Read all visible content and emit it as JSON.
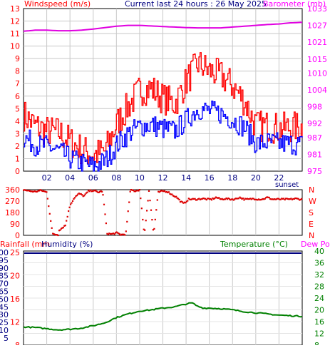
{
  "header": {
    "left_label": "Windspeed (m/s)",
    "center_label": "Current last 24 hours : 26 May 2025",
    "right_label": "Barometer (mb)"
  },
  "colors": {
    "wind_gust": "#ff0000",
    "wind_avg": "#0000ff",
    "barometer": "#e000e0",
    "direction": "#dd0000",
    "temperature": "#008000",
    "dew_point": "#ffcc00",
    "humidity_rain": "#000080",
    "grid": "#c8c8c8",
    "axis_text_left": "#ff0000",
    "axis_text_right": "#ff00ff",
    "axis_text_x": "#000080"
  },
  "chart_data": [
    {
      "type": "line",
      "title": "Current last 24 hours : 26 May 2025",
      "ylabel": "Windspeed (m/s)",
      "y2label": "Barometer (mb)",
      "ylim": [
        0,
        13
      ],
      "y2lim": [
        975,
        1033
      ],
      "xlim": [
        0,
        24
      ],
      "x_ticks": [
        "02",
        "04",
        "06",
        "08",
        "10",
        "12",
        "14",
        "16",
        "18",
        "20",
        "22"
      ],
      "y_ticks": [
        0,
        1,
        2,
        3,
        4,
        5,
        6,
        7,
        8,
        9,
        10,
        11,
        12,
        13
      ],
      "y2_ticks": [
        975,
        981,
        987,
        992,
        998,
        1004,
        1010,
        1015,
        1021,
        1027,
        1033
      ],
      "annotation": "sunset",
      "series": [
        {
          "role": "gust",
          "x": [
            0,
            1,
            2,
            3,
            4,
            5,
            6,
            7,
            8,
            9,
            10,
            11,
            12,
            13,
            14,
            15,
            16,
            17,
            18,
            19,
            20,
            21,
            22,
            23,
            24
          ],
          "values": [
            4.5,
            3.6,
            3.2,
            3.1,
            2.4,
            1.7,
            1.3,
            1.6,
            3.8,
            5.2,
            6.5,
            6.6,
            5.8,
            5.4,
            7.2,
            8.6,
            8.0,
            7.6,
            6.8,
            5.6,
            3.6,
            3.6,
            3.4,
            3.5,
            3.5
          ]
        },
        {
          "role": "average",
          "x": [
            0,
            1,
            2,
            3,
            4,
            5,
            6,
            7,
            8,
            9,
            10,
            11,
            12,
            13,
            14,
            15,
            16,
            17,
            18,
            19,
            20,
            21,
            22,
            23,
            24
          ],
          "values": [
            2.7,
            2.1,
            2.0,
            1.6,
            1.0,
            0.6,
            0.4,
            0.8,
            2.1,
            3.0,
            3.6,
            3.7,
            3.4,
            3.2,
            4.1,
            5.0,
            4.8,
            4.6,
            4.1,
            3.5,
            2.2,
            2.3,
            2.2,
            2.2,
            2.1
          ]
        },
        {
          "name": "Barometer (mb)",
          "axis": "right",
          "x": [
            0,
            1,
            2,
            3,
            4,
            5,
            6,
            7,
            8,
            9,
            10,
            11,
            12,
            13,
            14,
            15,
            16,
            17,
            18,
            19,
            20,
            21,
            22,
            23,
            24
          ],
          "values": [
            1024.9,
            1025.3,
            1025.3,
            1025.1,
            1025.1,
            1025.3,
            1025.7,
            1026.2,
            1026.7,
            1027.0,
            1027.0,
            1026.8,
            1026.6,
            1026.4,
            1026.2,
            1026.1,
            1026.1,
            1026.1,
            1026.4,
            1026.7,
            1027.0,
            1027.3,
            1027.5,
            1027.9,
            1028.1
          ]
        }
      ]
    },
    {
      "type": "scatter",
      "ylabel": "Wind direction",
      "ylim": [
        0,
        360
      ],
      "y_ticks": [
        0,
        90,
        180,
        270,
        360
      ],
      "y2_ticks": [
        "N",
        "E",
        "S",
        "W",
        "N"
      ],
      "xlim": [
        0,
        24
      ],
      "series": [
        {
          "role": "direction",
          "x": [
            0,
            0.5,
            1,
            1.5,
            2,
            2.5,
            3,
            2.3,
            2.6,
            3.2,
            3.6,
            4.0,
            4.4,
            4.8,
            5.2,
            5.6,
            6.0,
            6.4,
            6.8,
            7.2,
            7.6,
            8.0,
            8.4,
            8.8,
            9.2,
            9.6,
            10.0,
            10.4,
            10.8,
            11.2,
            11.6,
            12.0,
            12.4,
            12.8,
            13.2,
            13.5,
            13.8,
            14.2,
            14.6,
            15.0,
            15.4,
            15.8,
            16.2,
            16.6,
            17.0,
            17.4,
            17.8,
            18.2,
            18.6,
            19.0,
            19.4,
            19.8,
            20.2,
            20.6,
            21.0,
            21.4,
            21.8,
            22.2,
            22.6,
            23.0,
            23.4,
            23.8
          ],
          "values": [
            360,
            350,
            345,
            355,
            340,
            10,
            5,
            30,
            20,
            50,
            80,
            240,
            300,
            330,
            310,
            350,
            355,
            340,
            350,
            15,
            10,
            20,
            5,
            10,
            360,
            350,
            360,
            5,
            355,
            10,
            340,
            350,
            345,
            320,
            300,
            270,
            250,
            285,
            285,
            285,
            290,
            285,
            285,
            300,
            285,
            290,
            285,
            285,
            300,
            285,
            285,
            290,
            285,
            285,
            300,
            285,
            285,
            285,
            285,
            285,
            290,
            285
          ]
        }
      ]
    },
    {
      "type": "line",
      "ylabel": "Rainfall (mm) / Humidity (%)",
      "y2label": "Temperature (°C) / Dew Point",
      "left_labels": [
        "Rainfall (mm",
        "Humidity (%)"
      ],
      "right_labels": [
        "Temperature (°C)",
        "Dew Point"
      ],
      "humidity_ticks": [
        100,
        95,
        90,
        85,
        70,
        65,
        50,
        45,
        30,
        25,
        10,
        5
      ],
      "rain_ticks": [
        25,
        20,
        16,
        12,
        8
      ],
      "y2_ticks": [
        40,
        36,
        32,
        28,
        24,
        20,
        16,
        12,
        8
      ],
      "y2lim": [
        8,
        40
      ],
      "xlim": [
        0,
        24
      ],
      "series": [
        {
          "name": "Temperature (°C)",
          "axis": "right",
          "x": [
            0,
            1,
            2,
            3,
            4,
            5,
            6,
            7,
            8,
            9,
            10,
            11,
            12,
            13,
            14,
            14.5,
            15,
            15.5,
            16,
            17,
            18,
            19,
            20,
            21,
            22,
            23,
            24
          ],
          "values": [
            14.2,
            14.0,
            13.6,
            13.2,
            13.4,
            13.8,
            14.6,
            15.6,
            17.4,
            18.6,
            19.6,
            20.0,
            20.6,
            21.0,
            22.0,
            22.4,
            21.2,
            20.6,
            20.6,
            20.4,
            20.0,
            19.4,
            19.0,
            18.6,
            18.2,
            18.0,
            17.8
          ]
        },
        {
          "role": "humidity",
          "x": [
            0,
            24
          ],
          "values": [
            99,
            99
          ]
        },
        {
          "name": "Dew Point",
          "axis": "right",
          "x": [],
          "values": []
        }
      ]
    }
  ]
}
